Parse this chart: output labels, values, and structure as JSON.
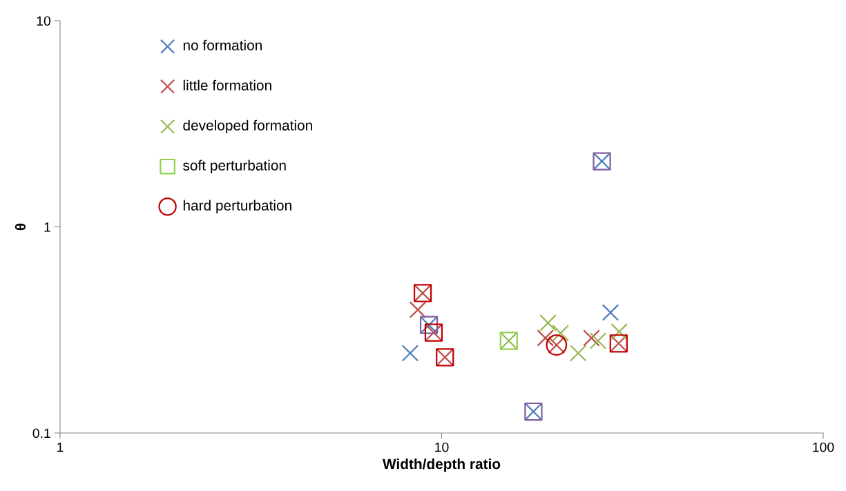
{
  "chart_data": {
    "type": "scatter",
    "xlabel": "Width/depth ratio",
    "ylabel": "θ",
    "log": "xy",
    "xlim": [
      1,
      100
    ],
    "xticks": [
      1,
      10,
      100
    ],
    "ylim": [
      0.1,
      10
    ],
    "yticks": [
      0.1,
      1,
      10
    ],
    "grid": false,
    "legend": "top left",
    "series": [
      {
        "name": "no formation",
        "color": "#4a7ebb",
        "marker": "cross",
        "x": [
          8.27,
          9.26,
          17.4,
          26.3,
          27.7
        ],
        "values": [
          0.244,
          0.334,
          0.127,
          2.08,
          0.384
        ]
      },
      {
        "name": "little formation",
        "color": "#be4b48",
        "marker": "cross",
        "x": [
          8.66,
          8.92,
          9.53,
          10.2,
          18.7,
          20.0,
          24.7,
          29.1
        ],
        "values": [
          0.396,
          0.477,
          0.307,
          0.233,
          0.289,
          0.267,
          0.289,
          0.272
        ]
      },
      {
        "name": "developed formation",
        "color": "#98b954",
        "marker": "cross",
        "x": [
          15.0,
          19.0,
          20.5,
          22.8,
          25.7,
          29.2
        ],
        "values": [
          0.28,
          0.342,
          0.305,
          0.244,
          0.28,
          0.31
        ]
      },
      {
        "name": "soft perturbation",
        "color": "#92d050",
        "marker": "square",
        "x": [
          15.0
        ],
        "values": [
          0.28
        ]
      },
      {
        "name": "hard perturbation",
        "color": "#c00000",
        "marker": "circle",
        "x": [
          20.0
        ],
        "values": [
          0.267
        ]
      },
      {
        "color": "#7f5f9f",
        "marker": "square",
        "x": [
          9.26,
          17.4,
          26.3
        ],
        "values": [
          0.334,
          0.127,
          2.08
        ]
      },
      {
        "color": "#c00000",
        "marker": "square",
        "x": [
          8.92,
          9.53,
          10.2,
          29.1
        ],
        "values": [
          0.477,
          0.307,
          0.233,
          0.272
        ]
      }
    ]
  }
}
